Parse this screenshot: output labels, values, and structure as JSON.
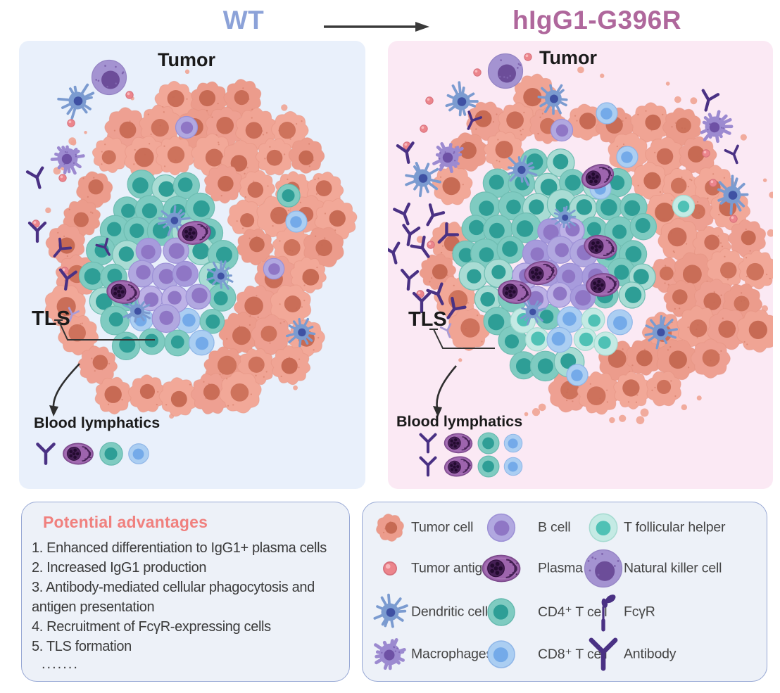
{
  "header": {
    "left_title": "WT",
    "right_title": "hIgG1-G396R"
  },
  "panels": {
    "left": {
      "tumor_label": "Tumor",
      "tls_label": "TLS",
      "blood_lymphatics_label": "Blood lymphatics"
    },
    "right": {
      "tumor_label": "Tumor",
      "tls_label": "TLS",
      "blood_lymphatics_label": "Blood lymphatics"
    }
  },
  "advantages": {
    "title": "Potential advantages",
    "items": [
      "1. Enhanced differentiation to IgG1+ plasma cells",
      "2. Increased IgG1 production",
      "3. Antibody-mediated cellular phagocytosis and antigen presentation",
      "4. Recruitment of FcγR-expressing cells",
      "5. TLS formation"
    ],
    "ellipsis": "......."
  },
  "legend": {
    "columns": [
      [
        {
          "icon": "tumor-cell",
          "label": "Tumor cell"
        },
        {
          "icon": "tumor-antigen",
          "label": "Tumor antigen"
        },
        {
          "icon": "dendritic-cell",
          "label": "Dendritic cells"
        },
        {
          "icon": "macrophage",
          "label": "Macrophages"
        }
      ],
      [
        {
          "icon": "b-cell",
          "label": "B cell"
        },
        {
          "icon": "plasma-cell",
          "label": "Plasma cell"
        },
        {
          "icon": "cd4-t-cell",
          "label": "CD4⁺ T cell"
        },
        {
          "icon": "cd8-t-cell",
          "label": "CD8⁺ T cell"
        }
      ],
      [
        {
          "icon": "t-follicular-helper",
          "label": "T follicular helper"
        },
        {
          "icon": "natural-killer-cell",
          "label": "Natural killer cell"
        },
        {
          "icon": "fcgr",
          "label": "FcγR"
        },
        {
          "icon": "antibody",
          "label": "Antibody"
        }
      ]
    ]
  },
  "colors": {
    "wt_title": "#8CA2D8",
    "mut_title": "#AF679C",
    "arrow": "#3A3A3A",
    "panel_left_bg": "#E9F0FB",
    "panel_right_bg": "#FBE9F4",
    "box_bg": "#EDF1F8",
    "box_border": "#96A7D4",
    "advantages_title": "#F0807E",
    "label_text": "#1A1A1A",
    "legend_text": "#454545",
    "tumor_cell_body": "#F0A494",
    "tumor_cell_nucleus": "#C76A54",
    "cd4_body": "#7FCBC1",
    "cd4_nucleus": "#2E9E96",
    "b_cell_body": "#B1A8E0",
    "b_cell_nucleus": "#8F76C5",
    "cd8_body": "#ABCEF2",
    "cd8_nucleus": "#74AAE9",
    "tfh_body": "#C4EAE4",
    "tfh_nucleus": "#4FC1B5",
    "plasma_body": "#9D64AD",
    "plasma_nucleus": "#452055",
    "dendritic_body": "#7B9BD0",
    "dendritic_nucleus": "#3F51A3",
    "macrophage_body": "#9C8AD0",
    "macrophage_nucleus": "#6E51A5",
    "nk_body": "#A493D1",
    "nk_nucleus": "#6C4D99",
    "antigen": "#EC858C",
    "antibody": "#4A3184"
  }
}
